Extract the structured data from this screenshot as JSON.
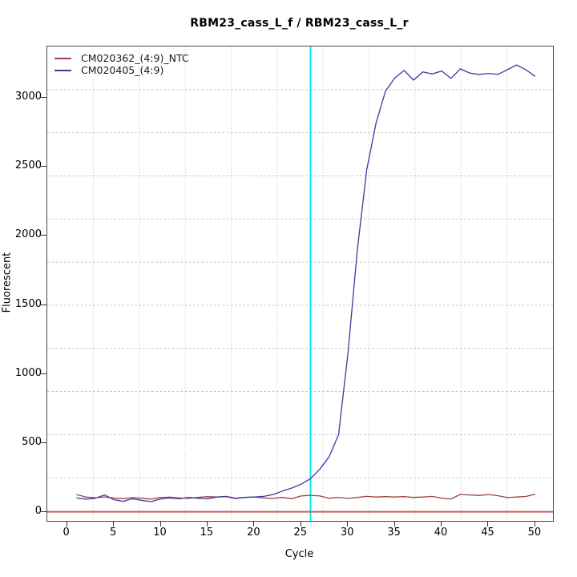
{
  "chart_data": {
    "type": "line",
    "title": "RBM23_cass_L_f / RBM23_cass_L_r",
    "xlabel": "Cycle",
    "ylabel": "Fluorescent",
    "xlim": [
      -2.11,
      51.89
    ],
    "ylim": [
      -66,
      3374
    ],
    "x_ticks": [
      0,
      5,
      10,
      15,
      20,
      25,
      30,
      35,
      40,
      45,
      50
    ],
    "y_ticks": [
      0,
      500,
      1000,
      1500,
      2000,
      2500,
      3000
    ],
    "grid": {
      "nx": 11,
      "ny": 11,
      "color": "#c3c3c3",
      "style": "dotted"
    },
    "x": [
      1,
      2,
      3,
      4,
      5,
      6,
      7,
      8,
      9,
      10,
      11,
      12,
      13,
      14,
      15,
      16,
      17,
      18,
      19,
      20,
      21,
      22,
      23,
      24,
      25,
      26,
      27,
      28,
      29,
      30,
      31,
      32,
      33,
      34,
      35,
      36,
      37,
      38,
      39,
      40,
      41,
      42,
      43,
      44,
      45,
      46,
      47,
      48,
      49,
      50
    ],
    "series": [
      {
        "name": "CM020362_(4:9)_NTC",
        "color": "#9e4040",
        "values": [
          125,
          108,
          102,
          108,
          100,
          95,
          103,
          98,
          92,
          104,
          106,
          100,
          97,
          104,
          110,
          107,
          112,
          99,
          104,
          107,
          101,
          97,
          104,
          95,
          115,
          120,
          115,
          98,
          105,
          97,
          104,
          112,
          107,
          110,
          107,
          110,
          104,
          107,
          112,
          99,
          93,
          126,
          122,
          119,
          125,
          117,
          103,
          107,
          111,
          128
        ]
      },
      {
        "name": "CM020405_(4:9)",
        "color": "#3a3aa0",
        "values": [
          100,
          92,
          98,
          122,
          88,
          76,
          95,
          82,
          74,
          93,
          100,
          95,
          105,
          98,
          95,
          107,
          110,
          96,
          104,
          108,
          112,
          125,
          150,
          172,
          200,
          240,
          310,
          400,
          560,
          1150,
          1900,
          2480,
          2820,
          3050,
          3145,
          3200,
          3130,
          3190,
          3175,
          3196,
          3143,
          3212,
          3181,
          3171,
          3179,
          3171,
          3205,
          3240,
          3205,
          3157
        ]
      }
    ],
    "threshold_line": {
      "y": 0,
      "color": "#c66060"
    },
    "ct_line": {
      "x": 26,
      "color": "#00eeee"
    }
  },
  "legend": {
    "items": [
      {
        "label": "CM020362_(4:9)_NTC"
      },
      {
        "label": "CM020405_(4:9)"
      }
    ]
  }
}
